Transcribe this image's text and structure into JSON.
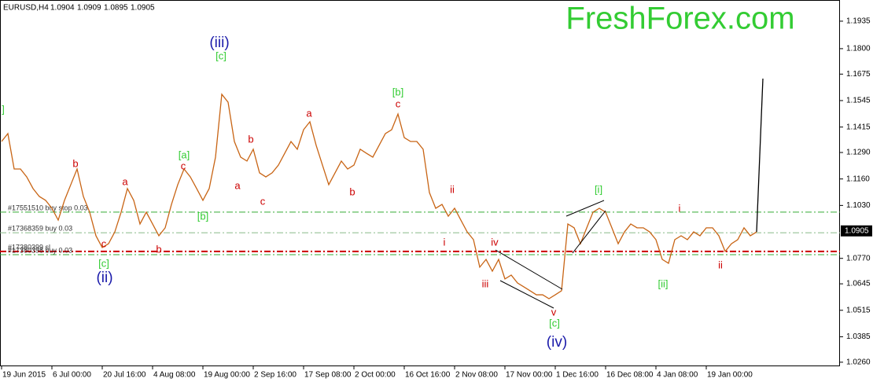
{
  "chart_data": {
    "type": "line",
    "symbol": "EURUSD,H4",
    "ohlc": [
      1.0904,
      1.0909,
      1.0895,
      1.0905
    ],
    "watermark": "FreshForex.com",
    "watermark_color": "#33cc33",
    "last_price": 1.0905,
    "ylim": [
      1.024,
      1.2039
    ],
    "yticks": [
      1.1935,
      {
        "value": 1.18,
        "label": "1.1800"
      },
      1.1675,
      1.1545,
      1.1415,
      {
        "value": 1.129,
        "label": "1.1290"
      },
      {
        "value": 1.116,
        "label": "1.1160"
      },
      {
        "value": 1.103,
        "label": "1.1030"
      },
      {
        "value": 1.077,
        "label": "1.0770"
      },
      1.0645,
      1.0515,
      1.0385,
      {
        "value": 1.026,
        "label": "1.0260"
      }
    ],
    "categories": [
      "19 Jun 2015",
      null,
      null,
      null,
      null,
      null,
      null,
      null,
      "6 Jul 00:00",
      null,
      null,
      null,
      null,
      null,
      null,
      null,
      "20 Jul 16:00",
      null,
      null,
      null,
      null,
      null,
      null,
      null,
      "4 Aug 08:00",
      null,
      null,
      null,
      null,
      null,
      null,
      null,
      "19 Aug 00:00",
      null,
      null,
      null,
      null,
      null,
      null,
      null,
      "2 Sep 16:00",
      null,
      null,
      null,
      null,
      null,
      null,
      null,
      "17 Sep 08:00",
      null,
      null,
      null,
      null,
      null,
      null,
      null,
      "2 Oct 00:00",
      null,
      null,
      null,
      null,
      null,
      null,
      null,
      "16 Oct 16:00",
      null,
      null,
      null,
      null,
      null,
      null,
      null,
      "2 Nov 08:00",
      null,
      null,
      null,
      null,
      null,
      null,
      null,
      "17 Nov 00:00",
      null,
      null,
      null,
      null,
      null,
      null,
      null,
      "1 Dec 16:00",
      null,
      null,
      null,
      null,
      null,
      null,
      null,
      "16 Dec 08:00",
      null,
      null,
      null,
      null,
      null,
      null,
      null,
      "4 Jan 08:00",
      null,
      null,
      null,
      null,
      null,
      null,
      null,
      "19 Jan 00:00",
      null,
      null,
      null,
      null,
      null,
      null,
      null,
      null,
      null
    ],
    "series": [
      {
        "color": "#c86414",
        "values": [
          1.1344,
          1.1383,
          1.1209,
          1.1209,
          1.117,
          1.1113,
          1.1074,
          1.1055,
          1.1016,
          1.0958,
          1.1055,
          1.1132,
          1.1209,
          1.1074,
          1.0997,
          1.0881,
          1.0823,
          1.0842,
          1.09,
          1.0997,
          1.1113,
          1.1055,
          1.0939,
          1.0997,
          1.0939,
          1.0881,
          1.092,
          1.1035,
          1.1132,
          1.1209,
          1.117,
          1.1113,
          1.1055,
          1.1113,
          1.1267,
          1.1576,
          1.1537,
          1.1344,
          1.1267,
          1.1248,
          1.1306,
          1.119,
          1.117,
          1.119,
          1.1228,
          1.1286,
          1.1344,
          1.1306,
          1.1402,
          1.1441,
          1.1325,
          1.1228,
          1.1132,
          1.119,
          1.1248,
          1.1209,
          1.1228,
          1.1306,
          1.1286,
          1.1267,
          1.1325,
          1.1383,
          1.1402,
          1.1479,
          1.1363,
          1.1344,
          1.1344,
          1.1306,
          1.1093,
          1.1016,
          1.1035,
          1.0977,
          1.1016,
          1.0958,
          1.09,
          1.0862,
          1.0727,
          1.0765,
          1.0707,
          1.0765,
          1.0669,
          1.0688,
          1.0649,
          1.063,
          1.0611,
          1.0591,
          1.0591,
          1.0572,
          1.0591,
          1.0611,
          1.0939,
          1.092,
          1.0842,
          1.092,
          1.0997,
          1.1016,
          1.0997,
          1.092,
          1.0842,
          1.09,
          1.0939,
          1.092,
          1.092,
          1.09,
          1.0862,
          1.0765,
          1.0746,
          1.0862,
          1.0881,
          1.0862,
          1.09,
          1.0881,
          1.092,
          1.092,
          1.0881,
          1.0804,
          1.0842,
          1.0862,
          1.092,
          1.0881,
          1.09,
          null
        ]
      },
      {
        "color": "#000000",
        "values": [
          null,
          null,
          null,
          null,
          null,
          null,
          null,
          null,
          null,
          null,
          null,
          null,
          null,
          null,
          null,
          null,
          null,
          null,
          null,
          null,
          null,
          null,
          null,
          null,
          null,
          null,
          null,
          null,
          null,
          null,
          null,
          null,
          null,
          null,
          null,
          null,
          null,
          null,
          null,
          null,
          null,
          null,
          null,
          null,
          null,
          null,
          null,
          null,
          null,
          null,
          null,
          null,
          null,
          null,
          null,
          null,
          null,
          null,
          null,
          null,
          null,
          null,
          null,
          null,
          null,
          null,
          null,
          null,
          null,
          null,
          null,
          null,
          null,
          null,
          null,
          null,
          null,
          null,
          null,
          null,
          null,
          null,
          null,
          null,
          null,
          null,
          null,
          null,
          null,
          null,
          null,
          null,
          null,
          null,
          null,
          null,
          null,
          null,
          null,
          null,
          null,
          null,
          null,
          null,
          null,
          null,
          null,
          null,
          null,
          null,
          null,
          null,
          null,
          null,
          null,
          null,
          null,
          null,
          null,
          null,
          1.09,
          1.1653
        ]
      }
    ],
    "levels": [
      {
        "label": "#17551510 buy stop 0.03",
        "value": 1.0997,
        "color": "#33aa33"
      },
      {
        "label": "#17368359 buy 0.03",
        "value": 1.0896,
        "color": "#88bb88"
      },
      {
        "label": "#17380399 sl",
        "value": 1.0804,
        "color": "#cc0000"
      },
      {
        "label": "#17380398 buy 0.03",
        "value": 1.0788,
        "color": "#33aa33"
      }
    ],
    "annotations": [
      {
        "text": "]",
        "color": "#33cc33"
      },
      {
        "text": "(iii)",
        "color": "#1a1aaa"
      },
      {
        "text": "[c]",
        "color": "#33cc33"
      },
      {
        "text": "[b]",
        "color": "#33cc33"
      },
      {
        "text": "c",
        "color": "#cc0000"
      },
      {
        "text": "a",
        "color": "#cc0000"
      },
      {
        "text": "b",
        "color": "#cc0000"
      },
      {
        "text": "[a]",
        "color": "#33cc33"
      },
      {
        "text": "c",
        "color": "#cc0000"
      },
      {
        "text": "b",
        "color": "#cc0000"
      },
      {
        "text": "a",
        "color": "#cc0000"
      },
      {
        "text": "a",
        "color": "#cc0000"
      },
      {
        "text": "c",
        "color": "#cc0000"
      },
      {
        "text": "b",
        "color": "#cc0000"
      },
      {
        "text": "[b]",
        "color": "#33cc33"
      },
      {
        "text": "b",
        "color": "#cc0000"
      },
      {
        "text": "c",
        "color": "#cc0000"
      },
      {
        "text": "[c]",
        "color": "#33cc33"
      },
      {
        "text": "(ii)",
        "color": "#1a1aaa"
      },
      {
        "text": "ii",
        "color": "#cc0000"
      },
      {
        "text": "i",
        "color": "#cc0000"
      },
      {
        "text": "iv",
        "color": "#cc0000"
      },
      {
        "text": "iii",
        "color": "#cc0000"
      },
      {
        "text": "v",
        "color": "#cc0000"
      },
      {
        "text": "[c]",
        "color": "#33cc33"
      },
      {
        "text": "(iv)",
        "color": "#1a1aaa"
      },
      {
        "text": "[i]",
        "color": "#33cc33"
      },
      {
        "text": "i",
        "color": "#cc0000"
      },
      {
        "text": "[ii]",
        "color": "#33cc33"
      },
      {
        "text": "ii",
        "color": "#cc0000"
      }
    ]
  }
}
